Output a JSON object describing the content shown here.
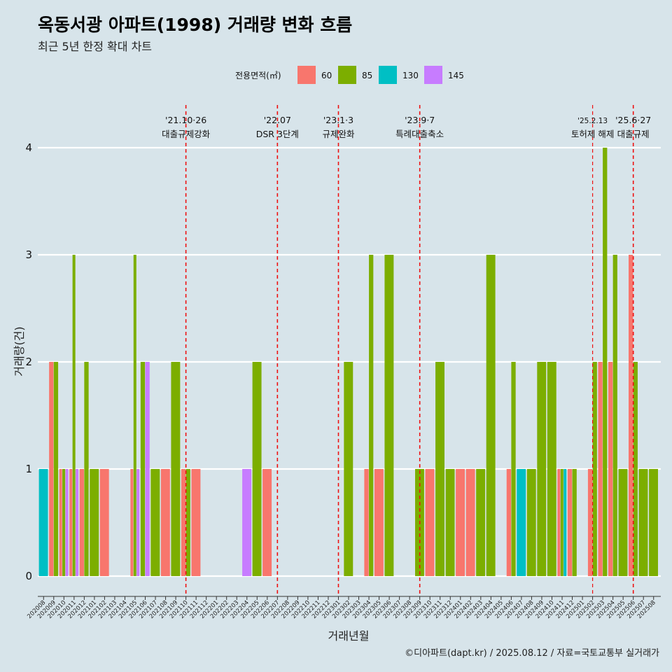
{
  "title": "옥동서광 아파트(1998) 거래량 변화 흐름",
  "subtitle": "최근 5년 한정 확대 차트",
  "caption": "©디아파트(dapt.kr) / 2025.08.12 / 자료=국토교통부 실거래가",
  "chart_data": {
    "type": "bar",
    "xlabel": "거래년월",
    "ylabel": "거래량(건)",
    "ylim": [
      -0.2,
      4.4
    ],
    "yticks": [
      0,
      1,
      2,
      3,
      4
    ],
    "legend": {
      "title": "전용면적(㎡)",
      "position": "top"
    },
    "categories": [
      "202008",
      "202009",
      "202010",
      "202011",
      "202012",
      "202101",
      "202102",
      "202103",
      "202104",
      "202105",
      "202106",
      "202107",
      "202108",
      "202109",
      "202110",
      "202111",
      "202112",
      "202201",
      "202202",
      "202203",
      "202204",
      "202205",
      "202206",
      "202207",
      "202208",
      "202209",
      "202210",
      "202211",
      "202212",
      "202301",
      "202302",
      "202303",
      "202304",
      "202305",
      "202306",
      "202307",
      "202308",
      "202309",
      "202310",
      "202311",
      "202312",
      "202401",
      "202402",
      "202403",
      "202404",
      "202405",
      "202406",
      "202407",
      "202408",
      "202409",
      "202410",
      "202411",
      "202412",
      "202501",
      "202502",
      "202503",
      "202504",
      "202505",
      "202506",
      "202507",
      "202508"
    ],
    "series": [
      {
        "name": "60",
        "color": "#f8766d",
        "values": [
          0,
          2,
          1,
          1,
          1,
          0,
          1,
          0,
          0,
          1,
          0,
          0,
          1,
          0,
          1,
          1,
          0,
          0,
          0,
          0,
          0,
          0,
          1,
          0,
          0,
          0,
          0,
          0,
          0,
          0,
          0,
          0,
          1,
          1,
          0,
          0,
          0,
          0,
          1,
          0,
          0,
          1,
          1,
          0,
          0,
          0,
          1,
          0,
          0,
          0,
          0,
          1,
          1,
          0,
          1,
          2,
          2,
          0,
          3,
          0,
          0
        ]
      },
      {
        "name": "85",
        "color": "#7cae00",
        "values": [
          0,
          2,
          1,
          3,
          2,
          1,
          0,
          0,
          0,
          3,
          2,
          1,
          0,
          2,
          1,
          0,
          0,
          0,
          0,
          0,
          0,
          2,
          0,
          0,
          0,
          0,
          0,
          0,
          0,
          0,
          2,
          0,
          3,
          0,
          3,
          0,
          0,
          1,
          0,
          2,
          1,
          0,
          0,
          1,
          3,
          0,
          2,
          0,
          1,
          2,
          2,
          1,
          1,
          0,
          2,
          4,
          3,
          1,
          2,
          1,
          1
        ]
      },
      {
        "name": "130",
        "color": "#00bfc4",
        "values": [
          1,
          0,
          0,
          0,
          0,
          0,
          0,
          0,
          0,
          0,
          0,
          0,
          0,
          0,
          0,
          0,
          0,
          0,
          0,
          0,
          0,
          0,
          0,
          0,
          0,
          0,
          0,
          0,
          0,
          0,
          0,
          0,
          0,
          0,
          0,
          0,
          0,
          0,
          0,
          0,
          0,
          0,
          0,
          0,
          0,
          0,
          0,
          1,
          0,
          0,
          0,
          1,
          0,
          0,
          0,
          0,
          0,
          0,
          0,
          0,
          0
        ]
      },
      {
        "name": "145",
        "color": "#c77cff",
        "values": [
          0,
          0,
          1,
          1,
          0,
          0,
          0,
          0,
          0,
          1,
          2,
          0,
          0,
          0,
          0,
          0,
          0,
          0,
          0,
          0,
          1,
          0,
          0,
          0,
          0,
          0,
          0,
          0,
          0,
          0,
          0,
          0,
          0,
          0,
          0,
          0,
          0,
          0,
          0,
          0,
          0,
          0,
          0,
          0,
          0,
          0,
          0,
          0,
          0,
          0,
          0,
          0,
          0,
          0,
          0,
          0,
          0,
          0,
          0,
          0,
          0
        ]
      }
    ],
    "annotations": [
      {
        "month": "202110",
        "date": "'21.10·26",
        "label": "대출규제강화"
      },
      {
        "month": "202207",
        "date": "'22.07",
        "label": "DSR 3단계"
      },
      {
        "month": "202301",
        "date": "'23.1·3",
        "label": "규제완화"
      },
      {
        "month": "202309",
        "date": "'23.9·7",
        "label": "특례대출축소"
      },
      {
        "month": "202502",
        "date": "'25.2.13",
        "label": "토허제 해제"
      },
      {
        "month": "202506",
        "date": "'25.6·27",
        "label": "대출규제"
      }
    ]
  }
}
